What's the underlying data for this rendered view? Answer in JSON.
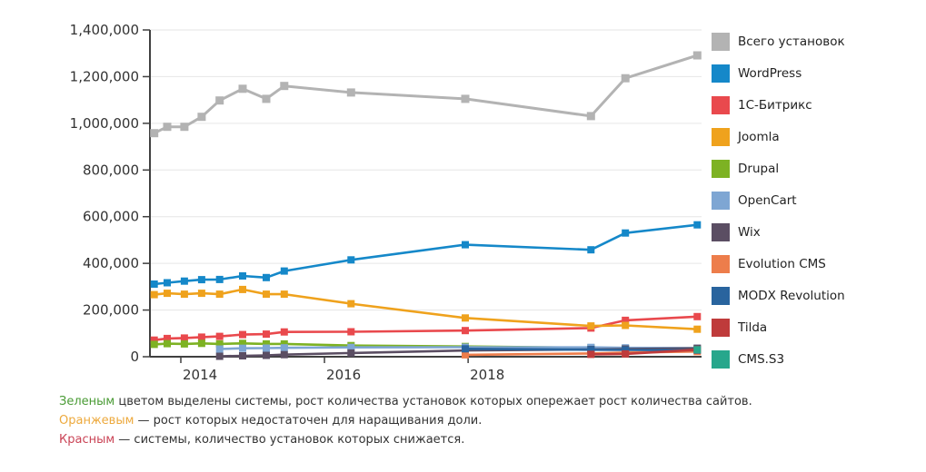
{
  "chart_data": {
    "type": "line",
    "title": "",
    "xlabel": "",
    "ylabel": "",
    "grid": true,
    "legend_position": "right",
    "ylim": [
      0,
      1400000
    ],
    "x_range": [
      2013.57,
      2021.25
    ],
    "y_ticks": [
      0,
      200000,
      400000,
      600000,
      800000,
      1000000,
      1200000,
      1400000
    ],
    "x_ticks": [
      {
        "year": 2014,
        "label": "2014"
      },
      {
        "year": 2016,
        "label": "2016"
      },
      {
        "year": 2018,
        "label": "2018"
      }
    ],
    "x": [
      2013.63,
      2013.81,
      2014.05,
      2014.29,
      2014.54,
      2014.86,
      2015.19,
      2015.44,
      2016.37,
      2017.96,
      2019.71,
      2020.19,
      2021.19
    ],
    "series": [
      {
        "name": "Всего установок",
        "color": "#b3b3b3",
        "values": [
          958000,
          985000,
          985000,
          1028000,
          1098000,
          1148000,
          1105000,
          1160000,
          1132000,
          1105000,
          1031000,
          1193000,
          1291000
        ]
      },
      {
        "name": "WordPress",
        "color": "#1588c9",
        "values": [
          311000,
          317000,
          324000,
          330000,
          331000,
          346000,
          339000,
          367000,
          415000,
          480000,
          458000,
          530000,
          565000
        ]
      },
      {
        "name": "1С-Битрикс",
        "color": "#e9494d",
        "values": [
          71000,
          78000,
          80000,
          84000,
          87000,
          95000,
          97000,
          106000,
          107000,
          112000,
          123000,
          156000,
          172000
        ]
      },
      {
        "name": "Joomla",
        "color": "#efa21d",
        "values": [
          266000,
          272000,
          268000,
          272000,
          268000,
          288000,
          268000,
          268000,
          227000,
          166000,
          132000,
          134000,
          118000
        ]
      },
      {
        "name": "Drupal",
        "color": "#7db223",
        "values": [
          53000,
          56000,
          55000,
          57000,
          55000,
          57000,
          55000,
          55000,
          48000,
          44000,
          38000,
          35000,
          33000
        ]
      },
      {
        "name": "OpenCart",
        "color": "#7ea6d3",
        "values": [
          null,
          null,
          null,
          null,
          33000,
          36000,
          37000,
          38000,
          40000,
          41000,
          40000,
          38000,
          37000
        ]
      },
      {
        "name": "Wix",
        "color": "#5b4e63",
        "values": [
          null,
          null,
          null,
          null,
          2000,
          4000,
          6000,
          9000,
          16000,
          27000,
          31000,
          33000,
          36000
        ]
      },
      {
        "name": "Evolution CMS",
        "color": "#ed7d4b",
        "values": [
          null,
          null,
          null,
          null,
          null,
          null,
          null,
          null,
          null,
          8000,
          14000,
          18000,
          22000
        ]
      },
      {
        "name": "MODX Revolution",
        "color": "#29649e",
        "values": [
          null,
          null,
          null,
          null,
          null,
          null,
          null,
          null,
          null,
          34000,
          30000,
          29000,
          28000
        ]
      },
      {
        "name": "Tilda",
        "color": "#bf3b3b",
        "values": [
          null,
          null,
          null,
          null,
          null,
          null,
          null,
          null,
          null,
          null,
          10000,
          12000,
          30000
        ]
      },
      {
        "name": "CMS.S3",
        "color": "#27a78c",
        "values": [
          null,
          null,
          null,
          null,
          null,
          null,
          null,
          null,
          null,
          null,
          null,
          null,
          30000
        ]
      }
    ]
  },
  "notes": [
    {
      "lead": "Зеленым",
      "lead_color": "#4a9b35",
      "rest": " цветом выделены системы, рост количества установок которых опережает рост количества сайтов."
    },
    {
      "lead": "Оранжевым",
      "lead_color": "#eda93c",
      "rest": " — рост которых недостаточен для наращивания доли."
    },
    {
      "lead": "Красным",
      "lead_color": "#ca4456",
      "rest": " — системы, количество установок которых снижается."
    }
  ]
}
